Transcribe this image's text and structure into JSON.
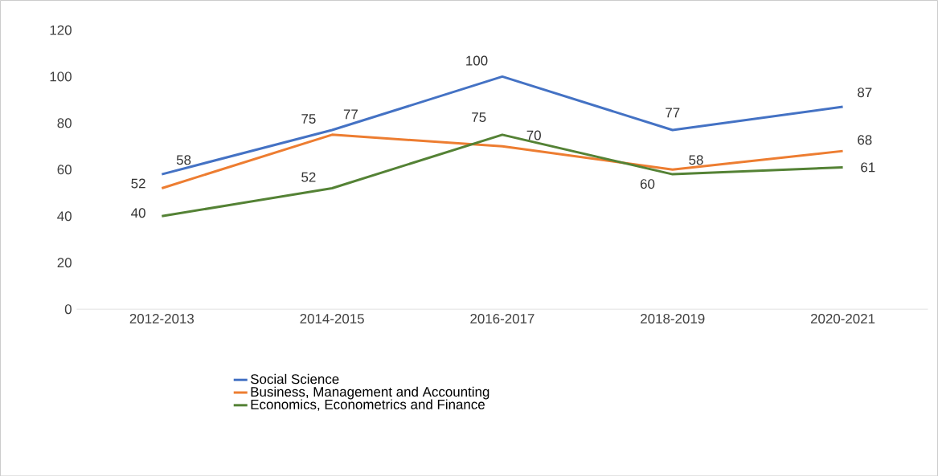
{
  "chart_data": {
    "type": "line",
    "categories": [
      "2012-2013",
      "2014-2015",
      "2016-2017",
      "2018-2019",
      "2020-2021"
    ],
    "series": [
      {
        "name": "Social Science",
        "color": "#4472c4",
        "values": [
          58,
          77,
          100,
          77,
          87
        ]
      },
      {
        "name": "Business, Management and Accounting",
        "color": "#ed7d31",
        "values": [
          52,
          75,
          70,
          60,
          68
        ]
      },
      {
        "name": "Economics, Econometrics and Finance",
        "color": "#548235",
        "values": [
          40,
          52,
          75,
          58,
          61
        ]
      }
    ],
    "ylim": [
      0,
      120
    ],
    "yticks": [
      0,
      20,
      40,
      60,
      80,
      100,
      120
    ],
    "legend": "bottom",
    "data_labels": true,
    "marker": "none",
    "line_style": "solid"
  }
}
